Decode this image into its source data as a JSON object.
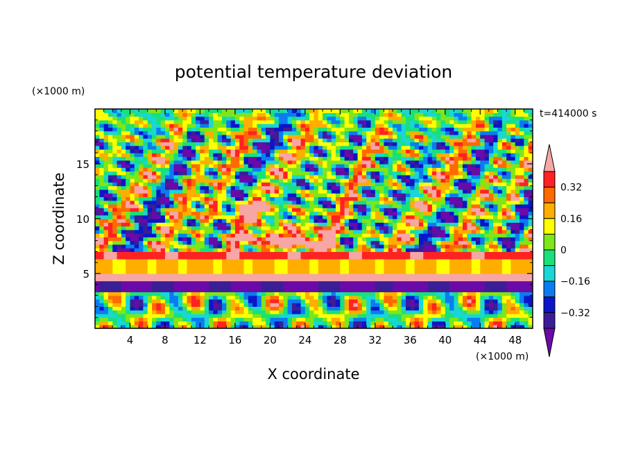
{
  "chart_data": {
    "type": "heatmap",
    "title": "potential temperature deviation",
    "time_label": "t=414000 s",
    "xlabel": "X coordinate",
    "ylabel": "Z coordinate",
    "x_unit": "(×1000 m)",
    "y_unit": "(×1000 m)",
    "xlim": [
      0,
      50
    ],
    "ylim": [
      0,
      20
    ],
    "x_ticks": [
      4,
      8,
      12,
      16,
      20,
      24,
      28,
      32,
      36,
      40,
      44,
      48
    ],
    "y_ticks": [
      5,
      10,
      15
    ],
    "colorbar": {
      "levels": [
        -0.4,
        -0.32,
        -0.24,
        -0.16,
        -0.08,
        0,
        0.08,
        0.16,
        0.24,
        0.32,
        0.4
      ],
      "labels": [
        "0.32",
        "0.16",
        "0",
        "-0.16",
        "-0.32"
      ],
      "colors": [
        "#6a0aa8",
        "#3b1e96",
        "#0c15c8",
        "#0a7cf0",
        "#1ad6d6",
        "#18e07a",
        "#7ee619",
        "#ffff00",
        "#ffae00",
        "#ff6a00",
        "#ff2222",
        "#f7a6a6"
      ]
    }
  }
}
